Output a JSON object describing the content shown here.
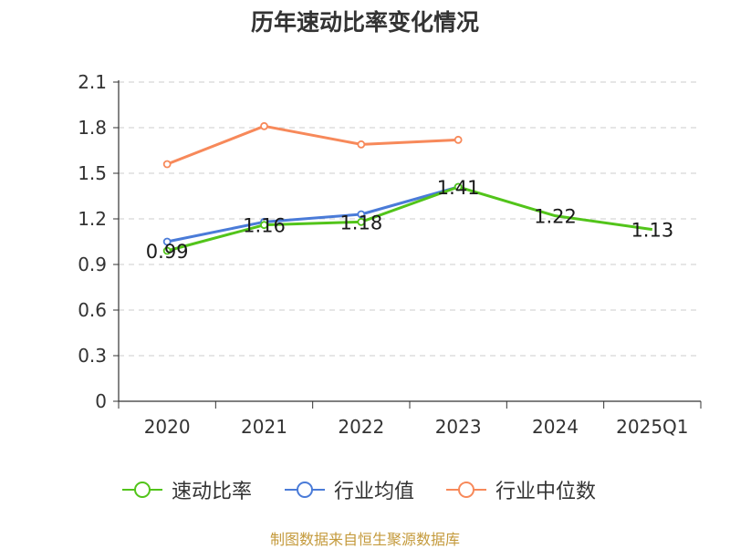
{
  "title": "历年速动比率变化情况",
  "source": "制图数据来自恒生聚源数据库",
  "colors": {
    "quick_ratio": "#52c41a",
    "industry_avg": "#4a7bd8",
    "industry_median": "#f7895a",
    "grid": "#cccccc",
    "axis": "#333333",
    "source_text": "#c49a3c"
  },
  "chart_data": {
    "type": "line",
    "title": "历年速动比率变化情况",
    "xlabel": "",
    "ylabel": "",
    "categories": [
      "2020",
      "2021",
      "2022",
      "2023",
      "2024",
      "2025Q1"
    ],
    "ylim": [
      0,
      2.1
    ],
    "yticks": [
      "0",
      "0.3",
      "0.6",
      "0.9",
      "1.2",
      "1.5",
      "1.8",
      "2.1"
    ],
    "grid": true,
    "legend_position": "bottom",
    "series": [
      {
        "name": "速动比率",
        "values": [
          0.99,
          1.16,
          1.18,
          1.41,
          1.22,
          1.13
        ],
        "labels": [
          "0.99",
          "1.16",
          "1.18",
          "1.41",
          "1.22",
          "1.13"
        ]
      },
      {
        "name": "行业均值",
        "values": [
          1.05,
          1.18,
          1.23,
          1.41,
          null,
          null
        ]
      },
      {
        "name": "行业中位数",
        "values": [
          1.56,
          1.81,
          1.69,
          1.72,
          null,
          null
        ]
      }
    ]
  }
}
